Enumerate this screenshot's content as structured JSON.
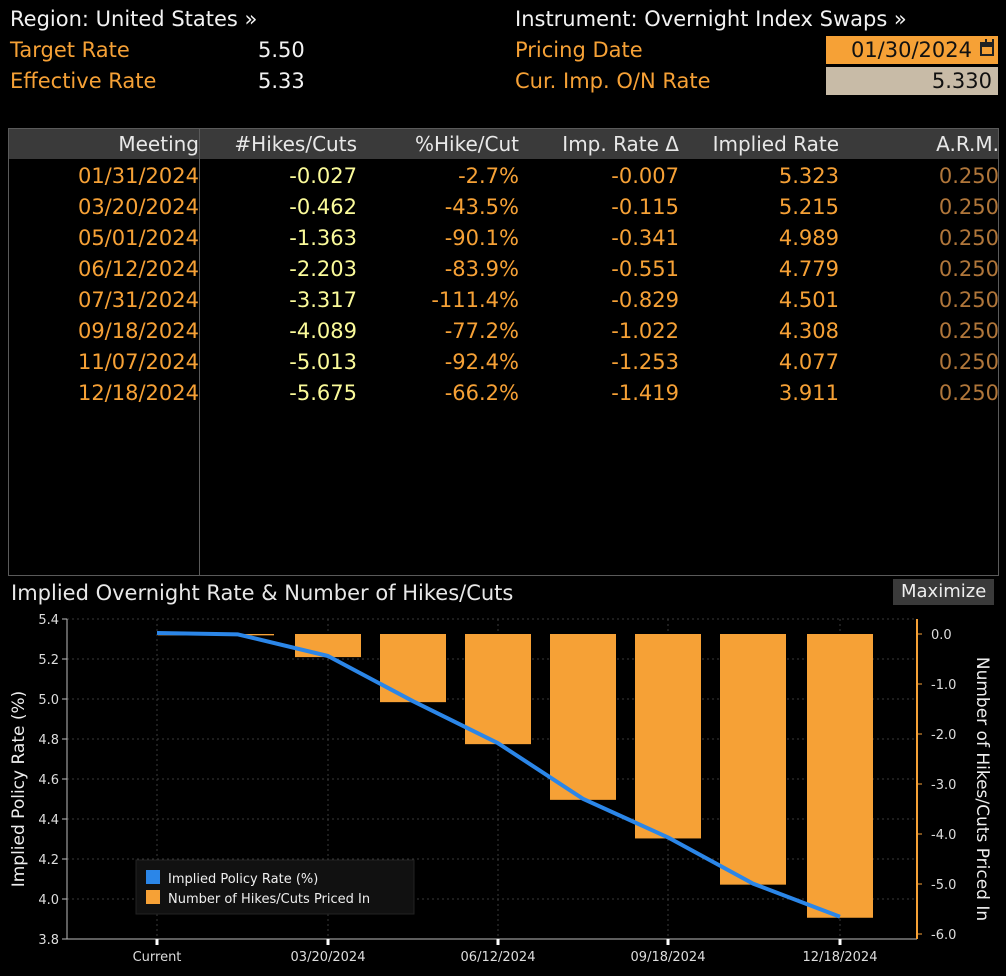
{
  "header": {
    "region": "Region: United States »",
    "target_rate_label": "Target Rate",
    "target_rate_value": "5.50",
    "effective_rate_label": "Effective Rate",
    "effective_rate_value": "5.33",
    "instrument": "Instrument: Overnight Index Swaps »",
    "pricing_date_label": "Pricing Date",
    "pricing_date_value": "01/30/2024",
    "cur_imp_label": "Cur. Imp. O/N Rate",
    "cur_imp_value": "5.330"
  },
  "table": {
    "columns": [
      "Meeting",
      "#Hikes/Cuts",
      "%Hike/Cut",
      "Imp. Rate Δ",
      "Implied Rate",
      "A.R.M."
    ],
    "rows": [
      [
        "01/31/2024",
        "-0.027",
        "-2.7%",
        "-0.007",
        "5.323",
        "0.250"
      ],
      [
        "03/20/2024",
        "-0.462",
        "-43.5%",
        "-0.115",
        "5.215",
        "0.250"
      ],
      [
        "05/01/2024",
        "-1.363",
        "-90.1%",
        "-0.341",
        "4.989",
        "0.250"
      ],
      [
        "06/12/2024",
        "-2.203",
        "-83.9%",
        "-0.551",
        "4.779",
        "0.250"
      ],
      [
        "07/31/2024",
        "-3.317",
        "-111.4%",
        "-0.829",
        "4.501",
        "0.250"
      ],
      [
        "09/18/2024",
        "-4.089",
        "-77.2%",
        "-1.022",
        "4.308",
        "0.250"
      ],
      [
        "11/07/2024",
        "-5.013",
        "-92.4%",
        "-1.253",
        "4.077",
        "0.250"
      ],
      [
        "12/18/2024",
        "-5.675",
        "-66.2%",
        "-1.419",
        "3.911",
        "0.250"
      ]
    ]
  },
  "chart_panel": {
    "title": "Implied Overnight Rate & Number of Hikes/Cuts",
    "maximize_label": "Maximize"
  },
  "colors": {
    "accent_orange": "#f6a136",
    "line_blue": "#2b86e8",
    "hike_yellow": "#fbfb9a"
  },
  "chart_data": {
    "type": "bar",
    "title": "Implied Overnight Rate & Number of Hikes/Cuts",
    "categories": [
      "Current",
      "01/31/2024",
      "03/20/2024",
      "05/01/2024",
      "06/12/2024",
      "07/31/2024",
      "09/18/2024",
      "11/07/2024",
      "12/18/2024"
    ],
    "x_tick_labels": [
      "Current",
      "03/20/2024",
      "06/12/2024",
      "09/18/2024",
      "12/18/2024"
    ],
    "series": [
      {
        "name": "Implied Policy Rate (%)",
        "type": "line",
        "axis": "left",
        "values": [
          5.33,
          5.323,
          5.215,
          4.989,
          4.779,
          4.501,
          4.308,
          4.077,
          3.911
        ]
      },
      {
        "name": "Number of Hikes/Cuts Priced In",
        "type": "bar",
        "axis": "right",
        "values": [
          0,
          -0.027,
          -0.462,
          -1.363,
          -2.203,
          -3.317,
          -4.089,
          -5.013,
          -5.675
        ]
      }
    ],
    "ylabel": "Implied Policy Rate (%)",
    "ylim": [
      3.8,
      5.4
    ],
    "yticks": [
      3.8,
      4.0,
      4.2,
      4.4,
      4.6,
      4.8,
      5.0,
      5.2,
      5.4
    ],
    "y2label": "Number of Hikes/Cuts Priced In",
    "y2lim": [
      -6.0,
      0.0
    ],
    "y2ticks": [
      -6.0,
      -5.0,
      -4.0,
      -3.0,
      -2.0,
      -1.0,
      0.0
    ],
    "grid": true,
    "legend_position": "bottom-left"
  }
}
